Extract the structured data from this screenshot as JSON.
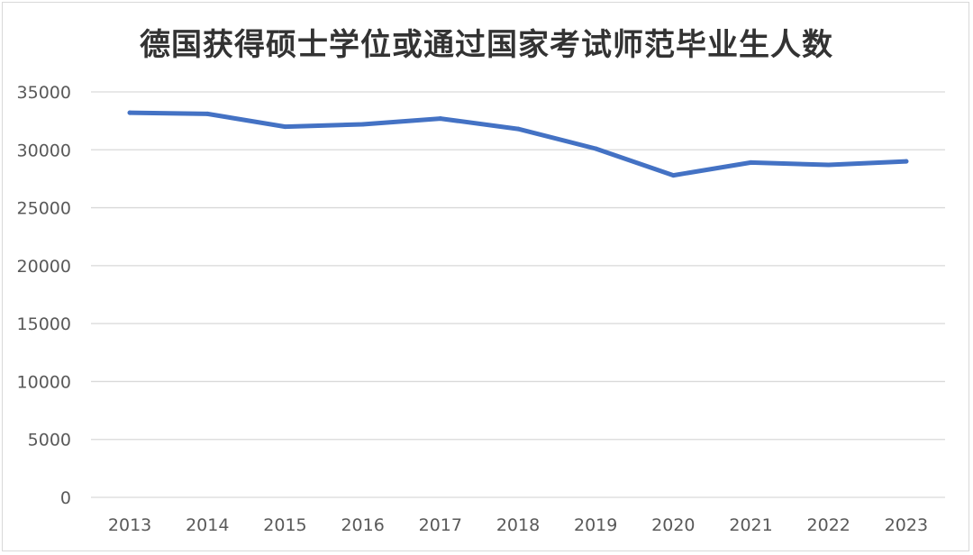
{
  "chart_data": {
    "type": "line",
    "title": "德国获得硕士学位或通过国家考试师范毕业生人数",
    "xlabel": "",
    "ylabel": "",
    "x": [
      "2013",
      "2014",
      "2015",
      "2016",
      "2017",
      "2018",
      "2019",
      "2020",
      "2021",
      "2022",
      "2023"
    ],
    "series": [
      {
        "values": [
          33200,
          33100,
          32000,
          32200,
          32700,
          31800,
          30100,
          27800,
          28900,
          28700,
          29000
        ]
      }
    ],
    "ylim": [
      0,
      35000
    ],
    "yticks": [
      "0",
      "5000",
      "10000",
      "15000",
      "20000",
      "25000",
      "30000",
      "35000"
    ],
    "grid": true,
    "legend": "none",
    "colors": {
      "line": "#4472c4",
      "grid": "#d9d9d9",
      "tick_text": "#595959",
      "title_text": "#333333"
    }
  }
}
